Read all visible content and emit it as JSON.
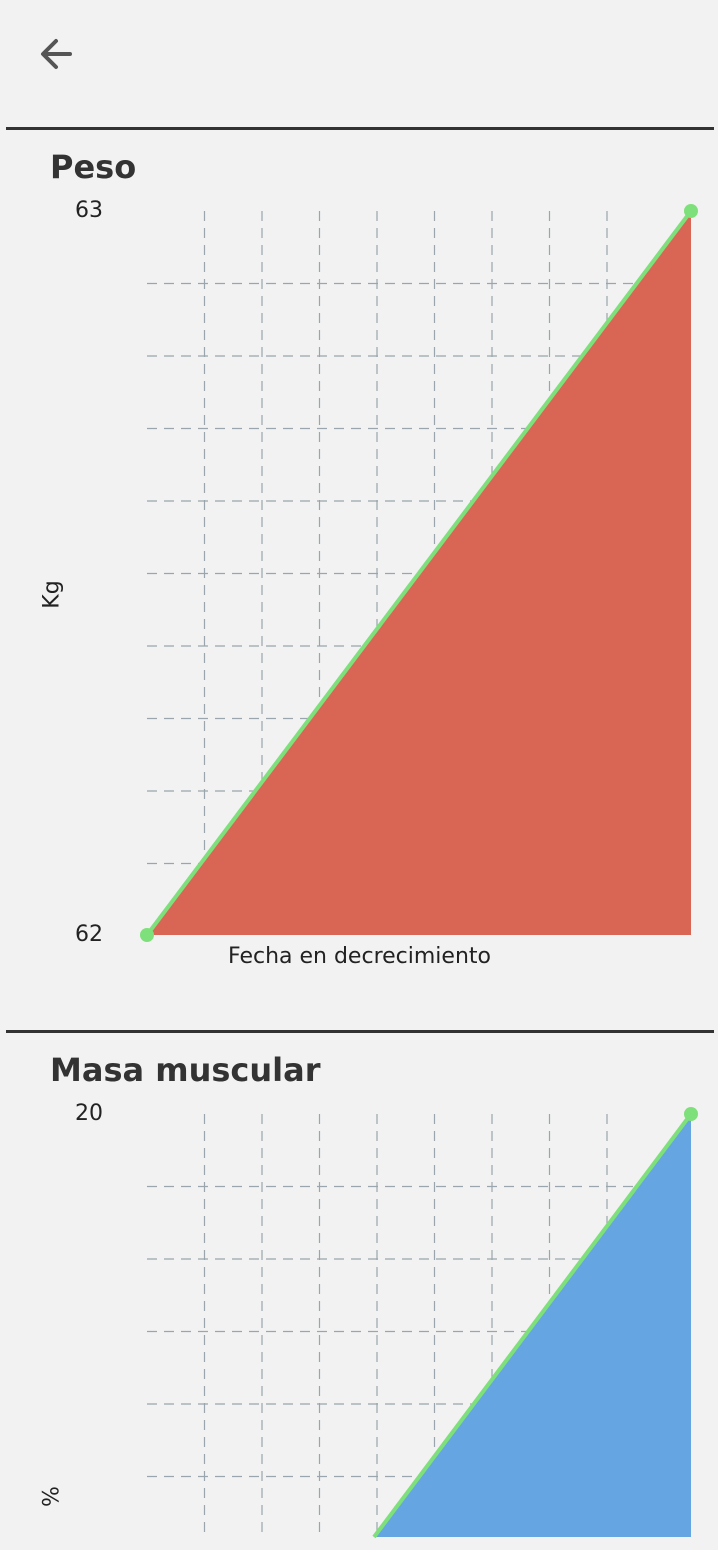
{
  "header": {
    "back_icon": "arrow-left-icon"
  },
  "chart_data": [
    {
      "type": "area",
      "title": "Peso",
      "ylabel": "Kg",
      "xlabel": "Fecha en decrecimiento",
      "y_ticks": [
        "63",
        "62"
      ],
      "ylim": [
        62,
        63
      ],
      "x": [
        0,
        1
      ],
      "values": [
        62,
        63
      ],
      "fill_color": "#d96654",
      "line_color": "#7ee07a",
      "grid": true
    },
    {
      "type": "area",
      "title": "Masa muscular",
      "ylabel": "%",
      "y_ticks": [
        "20"
      ],
      "ymax": 20,
      "x": [
        0,
        1
      ],
      "values": [
        null,
        20
      ],
      "fill_color": "#64a5e2",
      "line_color": "#7ee07a",
      "grid": true
    }
  ]
}
